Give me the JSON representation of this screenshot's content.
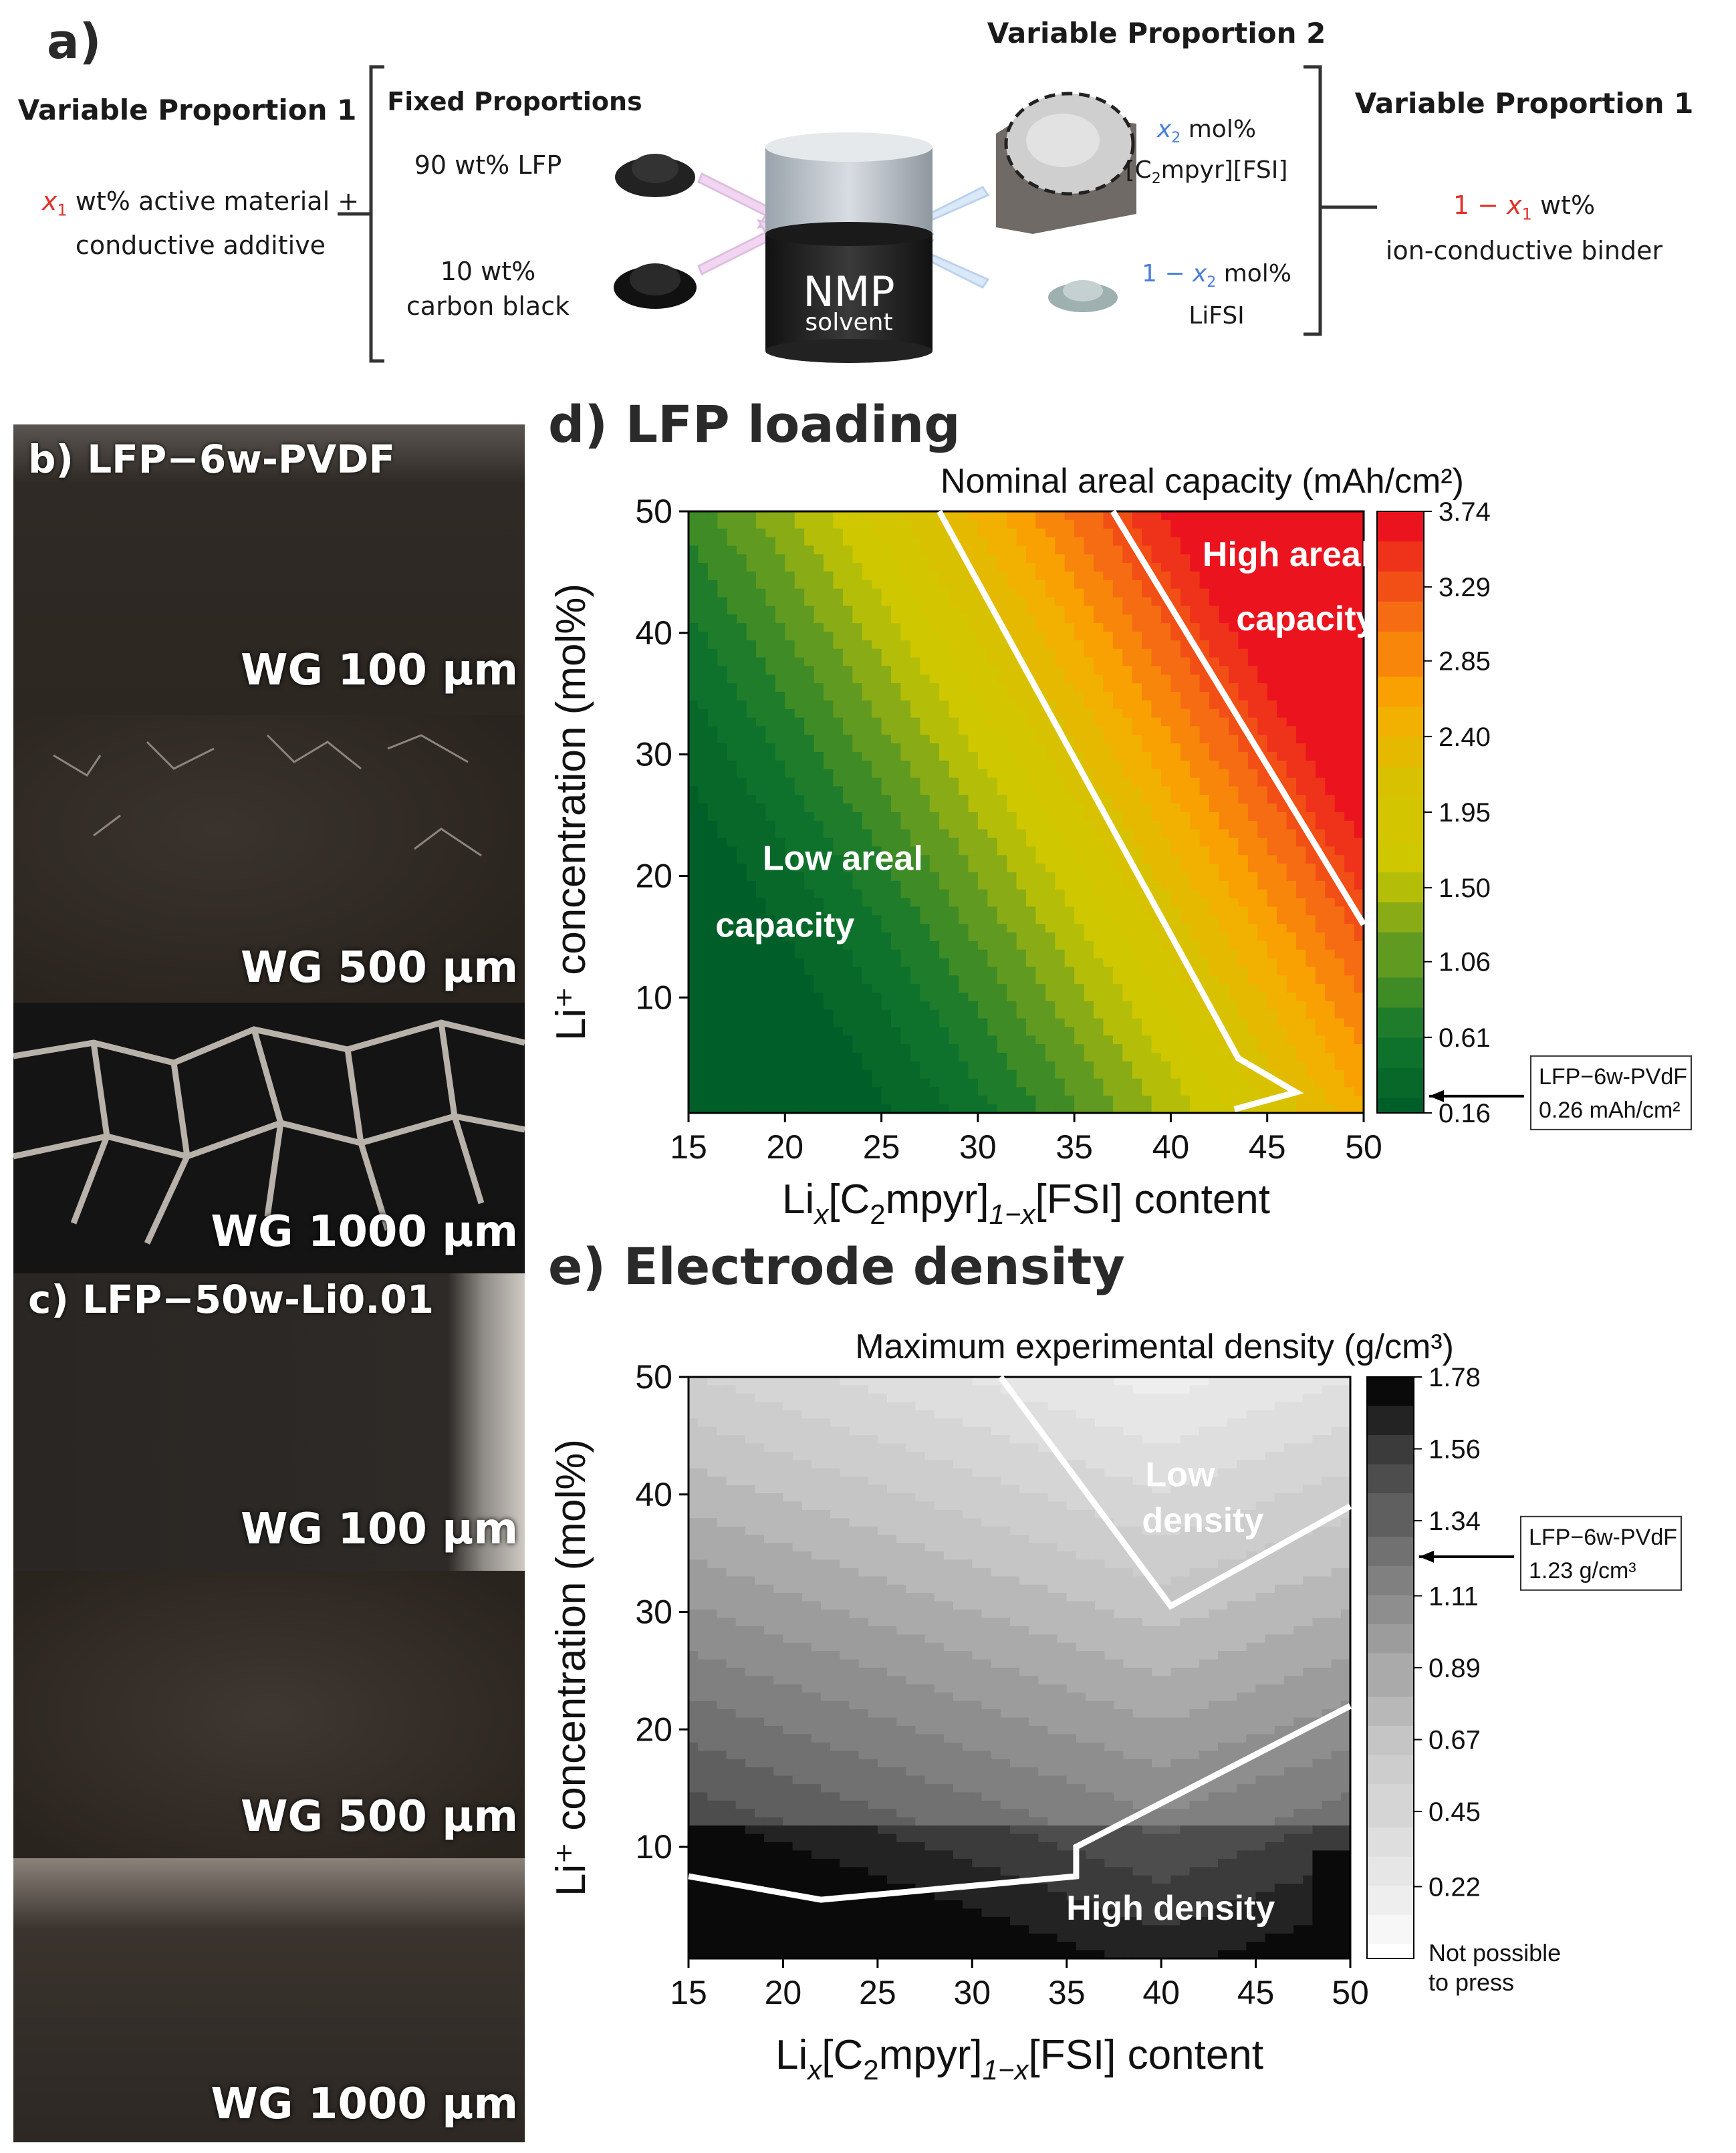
{
  "panel_a": {
    "label": "a)",
    "left_title": "Variable Proportion 1",
    "left_x": "x",
    "left_sub": "1",
    "left_rest_1": " wt% active material +",
    "left_line2": "conductive additive",
    "fixed_title": "Fixed Proportions",
    "fixed_lfp": "90 wt% LFP",
    "fixed_cb_1": "10 wt%",
    "fixed_cb_2": "carbon black",
    "solvent_1": "NMP",
    "solvent_2": "solvent",
    "vp2_title": "Variable Proportion 2",
    "vp2_il_x": "x",
    "vp2_il_sub": "2",
    "vp2_il_rest": " mol%",
    "vp2_il_name_a": "[C",
    "vp2_il_name_sub": "2",
    "vp2_il_name_b": "mpyr][FSI]",
    "vp2_li_pre": "1 − ",
    "vp2_li_x": "x",
    "vp2_li_sub": "2",
    "vp2_li_rest": " mol%",
    "vp2_li_name": "LiFSI",
    "right_title": "Variable Proportion 1",
    "right_pre": "1 − ",
    "right_x": "x",
    "right_sub": "1",
    "right_rest": " wt%",
    "right_line2": "ion-conductive binder"
  },
  "panel_b": {
    "label": "b) LFP−6w-PVDF",
    "photos": [
      "WG 100 μm",
      "WG 500 μm",
      "WG 1000 μm"
    ]
  },
  "panel_c": {
    "label": "c) LFP−50w-Li0.01",
    "photos": [
      "WG 100 μm",
      "WG 500 μm",
      "WG 1000 μm"
    ]
  },
  "chart_data": [
    {
      "type": "heatmap",
      "panel_title": "d) LFP loading",
      "colorbar_title": "Nominal areal capacity (mAh/cm²)",
      "colorbar_ticks": [
        "3.74",
        "3.29",
        "2.85",
        "2.40",
        "1.95",
        "1.50",
        "1.06",
        "0.61",
        "0.16"
      ],
      "x_ticks": [
        "15",
        "20",
        "25",
        "30",
        "35",
        "40",
        "45",
        "50"
      ],
      "y_ticks": [
        "50",
        "40",
        "30",
        "20",
        "10"
      ],
      "xlim": [
        15,
        50
      ],
      "ylim": [
        0.5,
        50
      ],
      "zlim": [
        0.16,
        3.74
      ],
      "xlabel": "Li",
      "xlabel_sub_x": "x",
      "xlabel_mid": "[C",
      "xlabel_sub_2": "2",
      "xlabel_mid2": "mpyr]",
      "xlabel_sub_1x": "1−x",
      "xlabel_end": "[FSI] content",
      "ylabel": "Li⁺ concentration (mol%)",
      "annotations": [
        "Low areal",
        "capacity",
        "High areal",
        "capacity"
      ],
      "reference_label": "LFP−6w-PVdF",
      "reference_value": "0.26 mAh/cm²",
      "reference_z": 0.26,
      "boundary_lines": [
        {
          "points": [
            [
              28,
              50
            ],
            [
              43.5,
              5
            ],
            [
              46.5,
              2.2
            ],
            [
              43.3,
              0.8
            ]
          ]
        },
        {
          "points": [
            [
              37,
              50
            ],
            [
              50,
              16
            ]
          ]
        }
      ]
    },
    {
      "type": "heatmap",
      "panel_title": "e) Electrode density",
      "colorbar_title": "Maximum experimental density (g/cm³)",
      "colorbar_ticks": [
        "1.78",
        "1.56",
        "1.34",
        "1.11",
        "0.89",
        "0.67",
        "0.45",
        "0.22"
      ],
      "colorbar_extra": [
        "Not possible",
        "to press"
      ],
      "x_ticks": [
        "15",
        "20",
        "25",
        "30",
        "35",
        "40",
        "45",
        "50"
      ],
      "y_ticks": [
        "50",
        "40",
        "30",
        "20",
        "10"
      ],
      "xlim": [
        15,
        50
      ],
      "ylim": [
        0.5,
        50
      ],
      "zlim": [
        0,
        1.78
      ],
      "xlabel": "Li",
      "xlabel_sub_x": "x",
      "xlabel_mid": "[C",
      "xlabel_sub_2": "2",
      "xlabel_mid2": "mpyr]",
      "xlabel_sub_1x": "1−x",
      "xlabel_end": "[FSI] content",
      "ylabel": "Li⁺ concentration (mol%)",
      "annotations": [
        "Low",
        "density",
        "High density"
      ],
      "reference_label": "LFP−6w-PVdF",
      "reference_value": "1.23 g/cm³",
      "reference_z": 1.23,
      "boundary_lines": [
        {
          "points": [
            [
              15,
              7.5
            ],
            [
              22,
              5.5
            ],
            [
              35.5,
              7.5
            ],
            [
              35.5,
              10
            ],
            [
              50,
              22
            ]
          ]
        },
        {
          "points": [
            [
              31.5,
              50
            ],
            [
              40.5,
              30.5
            ],
            [
              50,
              39
            ]
          ]
        }
      ]
    }
  ]
}
